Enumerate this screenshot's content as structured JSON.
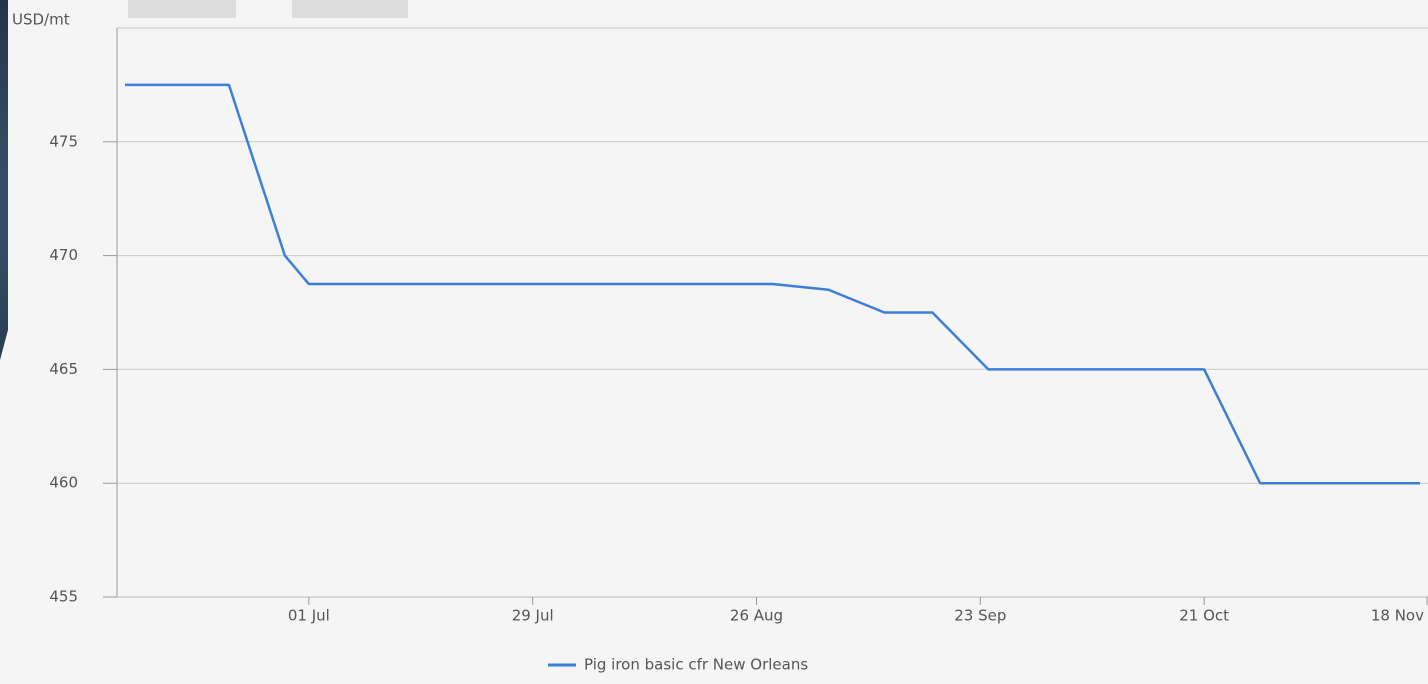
{
  "chart_data": {
    "type": "line",
    "y_axis_label": "USD/mt",
    "x": [
      "08 Jun",
      "21 Jun",
      "28 Jun",
      "01 Jul",
      "28 Aug",
      "04 Sep",
      "11 Sep",
      "17 Sep",
      "24 Sep",
      "21 Oct",
      "28 Oct",
      "17 Nov"
    ],
    "series": [
      {
        "name": "Pig iron basic cfr New Orleans",
        "color": "#3b80d6",
        "values": [
          477.5,
          477.5,
          470,
          468.75,
          468.75,
          468.5,
          467.5,
          467.5,
          465,
          465,
          460,
          460
        ]
      }
    ],
    "xlim": [
      "07 Jun",
      "18 Nov"
    ],
    "xticks": [
      "01 Jul",
      "29 Jul",
      "26 Aug",
      "23 Sep",
      "21 Oct",
      "18 Nov"
    ],
    "ylim": [
      455,
      480
    ],
    "yticks": [
      455,
      460,
      465,
      470,
      475
    ],
    "grid": true,
    "legend": "bottom"
  }
}
